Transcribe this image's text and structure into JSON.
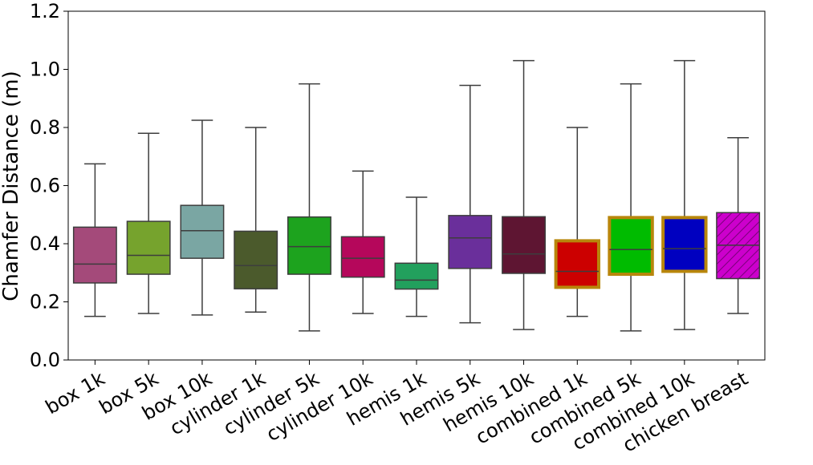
{
  "chart_data": {
    "type": "box",
    "ylabel": "Chamfer Distance (m)",
    "xlabel": "",
    "title": "",
    "ylim": [
      0.0,
      1.2
    ],
    "yticks": [
      "0.0",
      "0.2",
      "0.4",
      "0.6",
      "0.8",
      "1.0",
      "1.2"
    ],
    "grid": false,
    "categories": [
      "box 1k",
      "box 5k",
      "box 10k",
      "cylinder 1k",
      "cylinder 5k",
      "cylinder 10k",
      "hemis 1k",
      "hemis 5k",
      "hemis 10k",
      "combined 1k",
      "combined 5k",
      "combined 10k",
      "chicken breast"
    ],
    "boxes": [
      {
        "whisker_low": 0.15,
        "q1": 0.265,
        "median": 0.33,
        "q3": 0.457,
        "whisker_high": 0.675,
        "fill": "#a44a7a"
      },
      {
        "whisker_low": 0.16,
        "q1": 0.295,
        "median": 0.36,
        "q3": 0.477,
        "whisker_high": 0.78,
        "fill": "#76a32d"
      },
      {
        "whisker_low": 0.155,
        "q1": 0.35,
        "median": 0.445,
        "q3": 0.532,
        "whisker_high": 0.825,
        "fill": "#7aa6a3"
      },
      {
        "whisker_low": 0.165,
        "q1": 0.245,
        "median": 0.325,
        "q3": 0.443,
        "whisker_high": 0.8,
        "fill": "#4b5a2c"
      },
      {
        "whisker_low": 0.1,
        "q1": 0.295,
        "median": 0.39,
        "q3": 0.492,
        "whisker_high": 0.95,
        "fill": "#1da31e"
      },
      {
        "whisker_low": 0.16,
        "q1": 0.285,
        "median": 0.35,
        "q3": 0.424,
        "whisker_high": 0.65,
        "fill": "#b5075b"
      },
      {
        "whisker_low": 0.15,
        "q1": 0.244,
        "median": 0.275,
        "q3": 0.333,
        "whisker_high": 0.56,
        "fill": "#22a05d"
      },
      {
        "whisker_low": 0.128,
        "q1": 0.315,
        "median": 0.42,
        "q3": 0.497,
        "whisker_high": 0.945,
        "fill": "#6a2f9b"
      },
      {
        "whisker_low": 0.105,
        "q1": 0.298,
        "median": 0.365,
        "q3": 0.493,
        "whisker_high": 1.03,
        "fill": "#5e1532"
      },
      {
        "whisker_low": 0.15,
        "q1": 0.25,
        "median": 0.305,
        "q3": 0.41,
        "whisker_high": 0.8,
        "fill": "#cc0000",
        "edge": "#b8860b"
      },
      {
        "whisker_low": 0.1,
        "q1": 0.295,
        "median": 0.38,
        "q3": 0.49,
        "whisker_high": 0.95,
        "fill": "#00bb00",
        "edge": "#b8860b"
      },
      {
        "whisker_low": 0.105,
        "q1": 0.305,
        "median": 0.383,
        "q3": 0.49,
        "whisker_high": 1.03,
        "fill": "#0000c0",
        "edge": "#b8860b"
      },
      {
        "whisker_low": 0.16,
        "q1": 0.28,
        "median": 0.395,
        "q3": 0.507,
        "whisker_high": 0.765,
        "fill": "#cc00cc",
        "hatch": true
      }
    ]
  }
}
